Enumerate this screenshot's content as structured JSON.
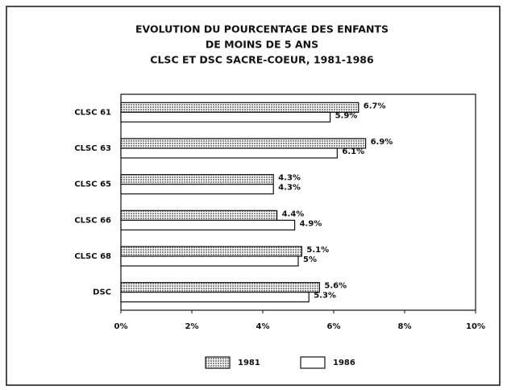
{
  "chart_data": {
    "type": "hbar",
    "title": [
      "EVOLUTION DU POURCENTAGE DES ENFANTS",
      "DE MOINS DE 5 ANS",
      "CLSC ET DSC SACRE-COEUR, 1981-1986"
    ],
    "categories": [
      "CLSC 61",
      "CLSC 63",
      "CLSC 65",
      "CLSC 66",
      "CLSC 68",
      "DSC"
    ],
    "series": [
      {
        "name": "1981",
        "color": "#8a8a8a",
        "values": [
          6.7,
          6.9,
          4.3,
          4.4,
          5.1,
          5.6
        ],
        "value_labels": [
          "6.7%",
          "6.9%",
          "4.3%",
          "4.4%",
          "5.1%",
          "5.6%"
        ]
      },
      {
        "name": "1986",
        "color": "#ffffff",
        "values": [
          5.9,
          6.1,
          4.3,
          4.9,
          5,
          5.3
        ],
        "value_labels": [
          "5.9%",
          "6.1%",
          "4.3%",
          "4.9%",
          "5%",
          "5.3%"
        ]
      }
    ],
    "xlim": [
      0,
      10
    ],
    "xticks": [
      {
        "value": 0,
        "label": "0%"
      },
      {
        "value": 2,
        "label": "2%"
      },
      {
        "value": 4,
        "label": "4%"
      },
      {
        "value": 6,
        "label": "6%"
      },
      {
        "value": 8,
        "label": "8%"
      },
      {
        "value": 10,
        "label": "10%"
      }
    ],
    "legend": "bottom"
  }
}
